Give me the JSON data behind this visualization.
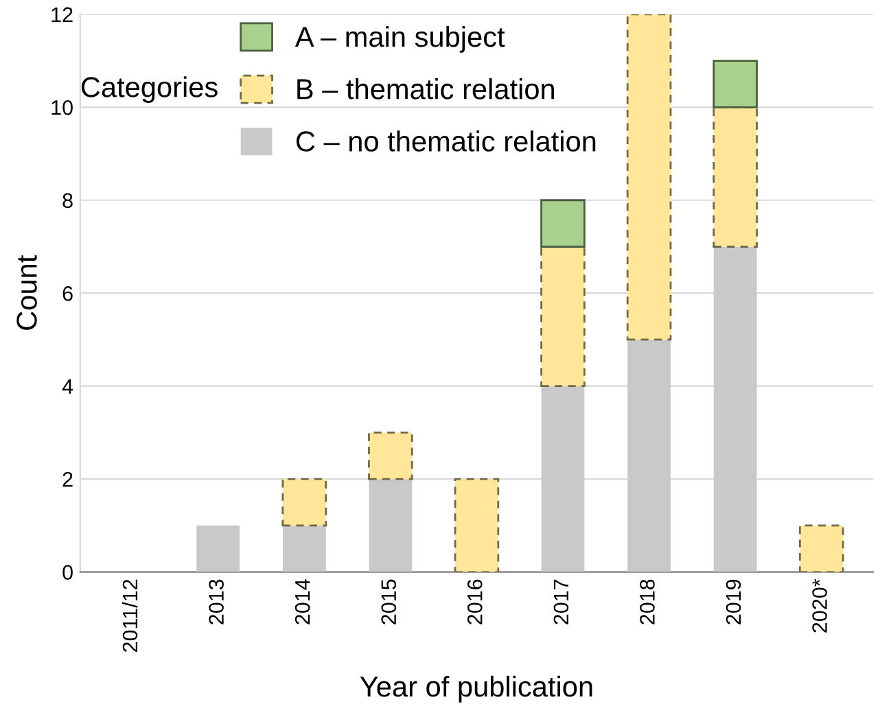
{
  "chart_data": {
    "type": "bar",
    "stacked": true,
    "xlabel": "Year of publication",
    "ylabel": "Count",
    "legend_title": "Categories",
    "categories": [
      "2011/12",
      "2013",
      "2014",
      "2015",
      "2016",
      "2017",
      "2018",
      "2019",
      "2020*"
    ],
    "series": [
      {
        "name": "C – no thematic relation",
        "color": "#c9c9c9",
        "values": [
          0,
          1,
          1,
          2,
          0,
          4,
          5,
          7,
          0
        ]
      },
      {
        "name": "B – thematic relation",
        "color": "#ffe699",
        "line_style": "dashed",
        "values": [
          0,
          0,
          1,
          1,
          2,
          3,
          7,
          3,
          1
        ]
      },
      {
        "name": "A – main subject",
        "color": "#a9d18e",
        "line_style": "solid",
        "values": [
          0,
          0,
          0,
          0,
          0,
          1,
          0,
          1,
          0
        ]
      }
    ],
    "ylim": [
      0,
      12
    ],
    "yticks": [
      0,
      2,
      4,
      6,
      8,
      10,
      12
    ],
    "grid": "y",
    "legend": "top left"
  }
}
